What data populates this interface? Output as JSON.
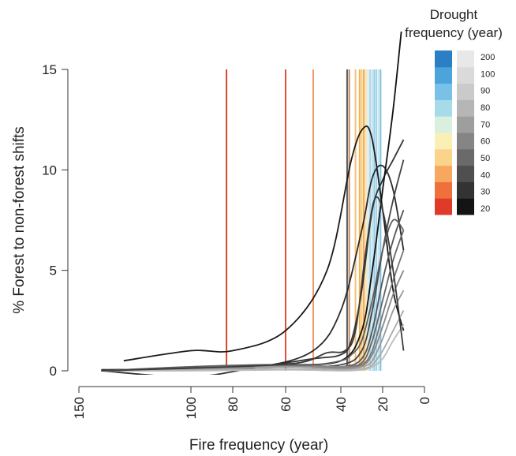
{
  "chart_data": {
    "type": "line",
    "xlabel": "Fire frequency (year)",
    "ylabel": "% Forest to non-forest shifts",
    "x_reversed": true,
    "x_scale": "reciprocal",
    "xlim": [
      150,
      0
    ],
    "ylim": [
      0,
      15
    ],
    "x_ticks": [
      150,
      100,
      80,
      60,
      40,
      20,
      0
    ],
    "y_ticks": [
      0,
      5,
      10,
      15
    ],
    "legend": {
      "title_line1": "Drought",
      "title_line2": "frequency (year)",
      "placement": "top-right",
      "tick_labels": [
        "200",
        "100",
        "90",
        "80",
        "70",
        "60",
        "50",
        "40",
        "30",
        "20"
      ],
      "color_scale": [
        "#e03a28",
        "#ef6f3d",
        "#f7a85e",
        "#fad48a",
        "#fbf0b4",
        "#d9efe0",
        "#a8dbe9",
        "#79c1e6",
        "#4ba4da",
        "#2b7fc4"
      ],
      "gray_scale": [
        "#141414",
        "#333333",
        "#4f4f4f",
        "#6a6a6a",
        "#858585",
        "#9e9e9e",
        "#b6b6b6",
        "#cacaca",
        "#dadada",
        "#e8e8e8"
      ]
    },
    "vertical_lines": [
      {
        "x": 83,
        "color": "#d94a2b"
      },
      {
        "x": 60,
        "color": "#e0523a"
      },
      {
        "x": 50,
        "color": "#ef9a6a"
      },
      {
        "x": 37,
        "color": "#5a5a5a"
      },
      {
        "x": 36,
        "color": "#c08a60"
      },
      {
        "x": 33,
        "color": "#f3c07a"
      },
      {
        "x": 31,
        "color": "#f5b24f"
      },
      {
        "x": 30,
        "color": "#f7c97a"
      },
      {
        "x": 29,
        "color": "#f0a44a"
      },
      {
        "x": 28,
        "color": "#fbe3a6"
      },
      {
        "x": 27,
        "color": "#cfe6ea"
      },
      {
        "x": 26,
        "color": "#a9d6e8"
      },
      {
        "x": 25,
        "color": "#bde0ec"
      },
      {
        "x": 24,
        "color": "#8fcbe6"
      },
      {
        "x": 23,
        "color": "#a3d3e8"
      },
      {
        "x": 22,
        "color": "#c6e5ef"
      },
      {
        "x": 21,
        "color": "#7fc0e3"
      }
    ],
    "series": [
      {
        "color": "#1a1a1a",
        "points": [
          [
            130,
            0.5
          ],
          [
            100,
            1.0
          ],
          [
            80,
            1.0
          ],
          [
            60,
            2.0
          ],
          [
            45,
            5.0
          ],
          [
            35,
            10.5
          ],
          [
            29,
            12.1
          ],
          [
            25,
            11.5
          ],
          [
            20,
            8.0
          ],
          [
            15,
            4.0
          ],
          [
            10,
            2.0
          ]
        ]
      },
      {
        "color": "#2a2a2a",
        "points": [
          [
            140,
            0.05
          ],
          [
            100,
            0.1
          ],
          [
            70,
            0.2
          ],
          [
            50,
            1.0
          ],
          [
            40,
            3.0
          ],
          [
            30,
            7.0
          ],
          [
            25,
            9.6
          ],
          [
            20,
            10.2
          ],
          [
            15,
            9.0
          ],
          [
            10,
            6.0
          ]
        ]
      },
      {
        "color": "#333333",
        "points": [
          [
            140,
            0
          ],
          [
            100,
            -0.3
          ],
          [
            70,
            0.2
          ],
          [
            50,
            0.6
          ],
          [
            40,
            0.8
          ],
          [
            35,
            1.5
          ],
          [
            30,
            4.0
          ],
          [
            25,
            8.0
          ],
          [
            20,
            9.5
          ],
          [
            15,
            10.5
          ],
          [
            10,
            11.5
          ]
        ]
      },
      {
        "color": "#111111",
        "points": [
          [
            60,
            0.3
          ],
          [
            40,
            0.5
          ],
          [
            30,
            2.0
          ],
          [
            25,
            5.0
          ],
          [
            20,
            9.0
          ],
          [
            15,
            13.0
          ],
          [
            10,
            18.0
          ]
        ]
      },
      {
        "color": "#444444",
        "points": [
          [
            140,
            0
          ],
          [
            100,
            0.1
          ],
          [
            60,
            0.2
          ],
          [
            40,
            0.3
          ],
          [
            30,
            1.0
          ],
          [
            25,
            3.0
          ],
          [
            20,
            6.0
          ],
          [
            15,
            8.5
          ],
          [
            10,
            10.5
          ]
        ]
      },
      {
        "color": "#555555",
        "points": [
          [
            140,
            0
          ],
          [
            100,
            0.1
          ],
          [
            60,
            0.2
          ],
          [
            40,
            0.2
          ],
          [
            30,
            0.6
          ],
          [
            25,
            2.0
          ],
          [
            20,
            4.5
          ],
          [
            15,
            6.5
          ],
          [
            10,
            8.0
          ]
        ]
      },
      {
        "color": "#666666",
        "points": [
          [
            140,
            0
          ],
          [
            100,
            0.15
          ],
          [
            60,
            0.3
          ],
          [
            40,
            0.2
          ],
          [
            30,
            0.4
          ],
          [
            25,
            1.5
          ],
          [
            20,
            3.5
          ],
          [
            15,
            5.5
          ],
          [
            10,
            7.0
          ]
        ]
      },
      {
        "color": "#777777",
        "points": [
          [
            140,
            0
          ],
          [
            100,
            0.1
          ],
          [
            60,
            0.2
          ],
          [
            40,
            0.15
          ],
          [
            30,
            0.3
          ],
          [
            25,
            1.0
          ],
          [
            20,
            2.8
          ],
          [
            15,
            4.5
          ],
          [
            10,
            6.0
          ]
        ]
      },
      {
        "color": "#888888",
        "points": [
          [
            140,
            0
          ],
          [
            100,
            0.2
          ],
          [
            60,
            0.25
          ],
          [
            40,
            0.2
          ],
          [
            30,
            0.25
          ],
          [
            25,
            0.8
          ],
          [
            20,
            2.2
          ],
          [
            15,
            3.8
          ],
          [
            10,
            5.0
          ]
        ]
      },
      {
        "color": "#999999",
        "points": [
          [
            140,
            0
          ],
          [
            100,
            0.1
          ],
          [
            60,
            0.2
          ],
          [
            40,
            0.1
          ],
          [
            30,
            0.2
          ],
          [
            25,
            0.5
          ],
          [
            20,
            1.6
          ],
          [
            15,
            3.0
          ],
          [
            10,
            4.0
          ]
        ]
      },
      {
        "color": "#aaaaaa",
        "points": [
          [
            140,
            0
          ],
          [
            100,
            0.05
          ],
          [
            60,
            0.1
          ],
          [
            40,
            0.05
          ],
          [
            30,
            0.1
          ],
          [
            25,
            0.3
          ],
          [
            20,
            1.0
          ],
          [
            15,
            2.0
          ],
          [
            10,
            3.0
          ]
        ]
      },
      {
        "color": "#bbbbbb",
        "points": [
          [
            140,
            0
          ],
          [
            100,
            0
          ],
          [
            60,
            0.05
          ],
          [
            40,
            0
          ],
          [
            30,
            0.05
          ],
          [
            25,
            0.2
          ],
          [
            20,
            0.6
          ],
          [
            15,
            1.5
          ],
          [
            10,
            2.3
          ]
        ]
      },
      {
        "color": "#5e5e5e",
        "points": [
          [
            140,
            0
          ],
          [
            100,
            0.2
          ],
          [
            70,
            0.3
          ],
          [
            50,
            0.3
          ],
          [
            40,
            0.5
          ],
          [
            35,
            0.8
          ],
          [
            30,
            1.5
          ],
          [
            25,
            3.5
          ],
          [
            20,
            6.0
          ],
          [
            15,
            7.5
          ],
          [
            10,
            7.0
          ]
        ]
      },
      {
        "color": "#3c3c3c",
        "points": [
          [
            140,
            0
          ],
          [
            110,
            0.1
          ],
          [
            80,
            0.2
          ],
          [
            55,
            0.4
          ],
          [
            45,
            0.9
          ],
          [
            38,
            1.0
          ],
          [
            33,
            2.0
          ],
          [
            28,
            6.0
          ],
          [
            24,
            8.5
          ],
          [
            20,
            8.0
          ],
          [
            15,
            5.0
          ],
          [
            10,
            1.0
          ]
        ]
      }
    ]
  }
}
